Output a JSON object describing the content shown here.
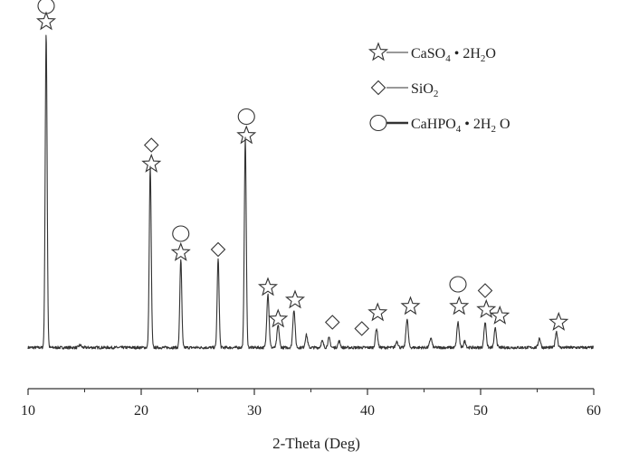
{
  "chart_data": {
    "type": "line",
    "title": "",
    "xlabel": "2-Theta (Deg)",
    "ylabel": "",
    "xlim": [
      10,
      60
    ],
    "ylim": [
      0,
      100
    ],
    "x_ticks": [
      10,
      20,
      30,
      40,
      50,
      60
    ],
    "grid": false,
    "legend_placement": "top-right",
    "legend": [
      {
        "symbol": "star",
        "line": "thin",
        "parts": [
          [
            "CaSO",
            ""
          ],
          [
            "4",
            "sub"
          ],
          [
            " • 2H",
            ""
          ],
          [
            "2",
            "sub"
          ],
          [
            "O",
            ""
          ]
        ]
      },
      {
        "symbol": "diamond",
        "line": "thin",
        "parts": [
          [
            "SiO",
            ""
          ],
          [
            "2",
            "sub"
          ]
        ]
      },
      {
        "symbol": "circle",
        "line": "thick",
        "parts": [
          [
            "CaHPO",
            ""
          ],
          [
            "4",
            "sub"
          ],
          [
            " • 2H",
            ""
          ],
          [
            "2",
            "sub"
          ],
          [
            " O",
            ""
          ]
        ]
      }
    ],
    "baseline": 3,
    "peaks": [
      {
        "x": 11.6,
        "h": 99
      },
      {
        "x": 14.6,
        "h": 0.8
      },
      {
        "x": 20.8,
        "h": 57
      },
      {
        "x": 23.5,
        "h": 28
      },
      {
        "x": 26.8,
        "h": 28
      },
      {
        "x": 29.2,
        "h": 66
      },
      {
        "x": 31.2,
        "h": 17
      },
      {
        "x": 32.1,
        "h": 7
      },
      {
        "x": 33.5,
        "h": 12
      },
      {
        "x": 34.6,
        "h": 4
      },
      {
        "x": 36.0,
        "h": 2
      },
      {
        "x": 36.6,
        "h": 3
      },
      {
        "x": 37.5,
        "h": 2
      },
      {
        "x": 40.8,
        "h": 6
      },
      {
        "x": 42.6,
        "h": 2
      },
      {
        "x": 43.5,
        "h": 9
      },
      {
        "x": 45.6,
        "h": 3
      },
      {
        "x": 48.0,
        "h": 8
      },
      {
        "x": 48.6,
        "h": 2
      },
      {
        "x": 50.4,
        "h": 8
      },
      {
        "x": 51.3,
        "h": 6
      },
      {
        "x": 55.2,
        "h": 3
      },
      {
        "x": 56.7,
        "h": 5
      }
    ],
    "annotations": [
      {
        "symbol": "circle",
        "x": 11.6,
        "y": 111
      },
      {
        "symbol": "star",
        "x": 11.6,
        "y": 106
      },
      {
        "symbol": "diamond",
        "x": 20.9,
        "y": 67
      },
      {
        "symbol": "star",
        "x": 20.9,
        "y": 61
      },
      {
        "symbol": "circle",
        "x": 23.5,
        "y": 39
      },
      {
        "symbol": "star",
        "x": 23.5,
        "y": 33
      },
      {
        "symbol": "diamond",
        "x": 26.8,
        "y": 34
      },
      {
        "symbol": "circle",
        "x": 29.3,
        "y": 76
      },
      {
        "symbol": "star",
        "x": 29.3,
        "y": 70
      },
      {
        "symbol": "star",
        "x": 31.2,
        "y": 22
      },
      {
        "symbol": "star",
        "x": 32.1,
        "y": 12
      },
      {
        "symbol": "star",
        "x": 33.6,
        "y": 18
      },
      {
        "symbol": "diamond",
        "x": 36.9,
        "y": 11
      },
      {
        "symbol": "diamond",
        "x": 39.5,
        "y": 9
      },
      {
        "symbol": "star",
        "x": 40.9,
        "y": 14
      },
      {
        "symbol": "star",
        "x": 43.8,
        "y": 16
      },
      {
        "symbol": "circle",
        "x": 48.0,
        "y": 23
      },
      {
        "symbol": "star",
        "x": 48.1,
        "y": 16
      },
      {
        "symbol": "diamond",
        "x": 50.4,
        "y": 21
      },
      {
        "symbol": "star",
        "x": 50.5,
        "y": 15
      },
      {
        "symbol": "star",
        "x": 51.7,
        "y": 13
      },
      {
        "symbol": "star",
        "x": 56.9,
        "y": 11
      }
    ]
  }
}
